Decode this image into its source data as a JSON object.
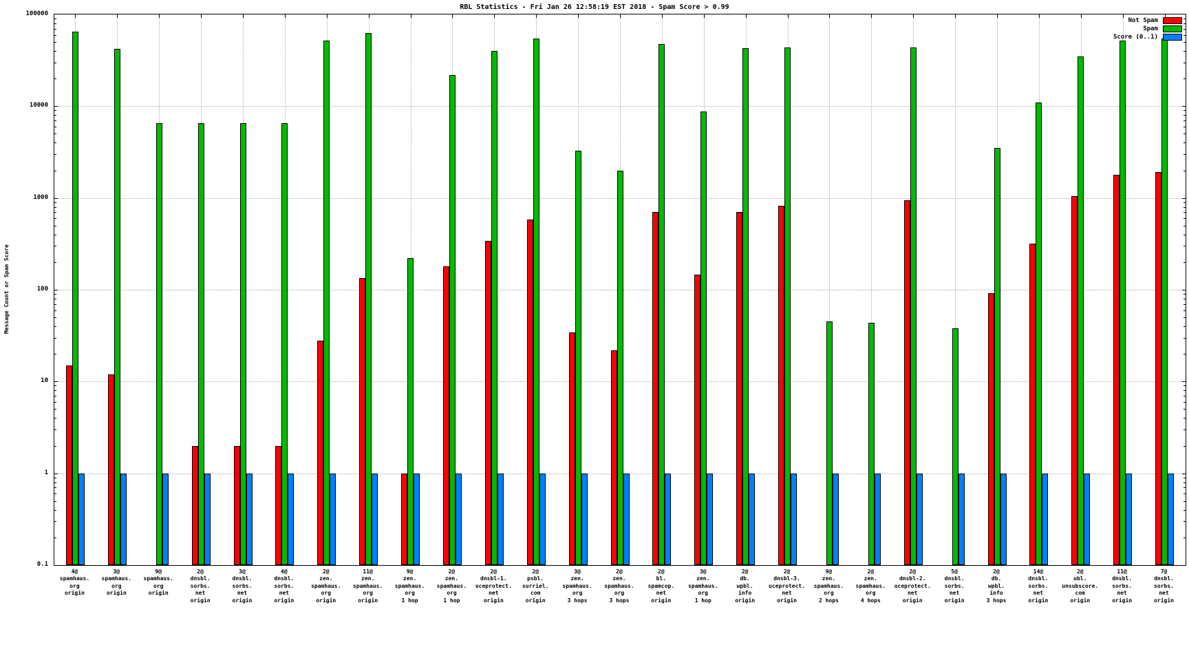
{
  "page": {
    "title": "RBL Statistics - Fri Jan 26 12:58:19 EST 2018 - Spam Score > 0.99"
  },
  "chart_data": {
    "type": "bar",
    "title": "RBL Statistics - Fri Jan 26 12:58:19 EST 2018 - Spam Score > 0.99",
    "xlabel": "",
    "ylabel": "Message Count or Spam Score",
    "yscale": "log",
    "ylim": [
      0.1,
      100000
    ],
    "yticks": [
      0.1,
      1,
      10,
      100,
      1000,
      10000,
      100000
    ],
    "ytick_labels": [
      "0.1",
      "1",
      "10",
      "100",
      "1000",
      "10000",
      "100000"
    ],
    "grid": true,
    "legend_position": "top-right",
    "categories": [
      [
        "4@",
        "spamhaus.",
        "org",
        "origin"
      ],
      [
        "3@",
        "spamhaus.",
        "org",
        "origin"
      ],
      [
        "9@",
        "spamhaus.",
        "org",
        "origin"
      ],
      [
        "2@",
        "dnsbl.",
        "sorbs.",
        "net",
        "origin"
      ],
      [
        "3@",
        "dnsbl.",
        "sorbs.",
        "net",
        "origin"
      ],
      [
        "4@",
        "dnsbl.",
        "sorbs.",
        "net",
        "origin"
      ],
      [
        "2@",
        "zen.",
        "spamhaus.",
        "org",
        "origin"
      ],
      [
        "11@",
        "zen.",
        "spamhaus.",
        "org",
        "origin"
      ],
      [
        "9@",
        "zen.",
        "spamhaus.",
        "org",
        "1 hop"
      ],
      [
        "2@",
        "zen.",
        "spamhaus.",
        "org",
        "1 hop"
      ],
      [
        "2@",
        "dnsbl-1.",
        "uceprotect.",
        "net",
        "origin"
      ],
      [
        "2@",
        "psbl.",
        "surriel.",
        "com",
        "origin"
      ],
      [
        "3@",
        "zen.",
        "spamhaus.",
        "org",
        "3 hops"
      ],
      [
        "2@",
        "zen.",
        "spamhaus.",
        "org",
        "3 hops"
      ],
      [
        "2@",
        "bl.",
        "spamcop.",
        "net",
        "origin"
      ],
      [
        "3@",
        "zen.",
        "spamhaus.",
        "org",
        "1 hop"
      ],
      [
        "2@",
        "db.",
        "wpbl.",
        "info",
        "origin"
      ],
      [
        "2@",
        "dnsbl-3.",
        "uceprotect.",
        "net",
        "origin"
      ],
      [
        "9@",
        "zen.",
        "spamhaus.",
        "org",
        "2 hops"
      ],
      [
        "2@",
        "zen.",
        "spamhaus.",
        "org",
        "4 hops"
      ],
      [
        "2@",
        "dnsbl-2.",
        "uceprotect.",
        "net",
        "origin"
      ],
      [
        "5@",
        "dnsbl.",
        "sorbs.",
        "net",
        "origin"
      ],
      [
        "2@",
        "db.",
        "wpbl.",
        "info",
        "3 hops"
      ],
      [
        "14@",
        "dnsbl.",
        "sorbs.",
        "net",
        "origin"
      ],
      [
        "2@",
        "ubl.",
        "unsubscore.",
        "com",
        "origin"
      ],
      [
        "11@",
        "dnsbl.",
        "sorbs.",
        "net",
        "origin"
      ],
      [
        "7@",
        "dnsbl.",
        "sorbs.",
        "net",
        "origin"
      ]
    ],
    "series": [
      {
        "name": "Not Spam",
        "color": "#ff0000",
        "values": [
          15,
          12,
          null,
          2,
          2,
          2,
          28,
          135,
          1,
          180,
          340,
          580,
          34,
          22,
          700,
          145,
          700,
          820,
          null,
          null,
          950,
          null,
          92,
          320,
          1050,
          1800,
          1900
        ]
      },
      {
        "name": "Spam",
        "color": "#00bb00",
        "values": [
          65000,
          42000,
          6500,
          6500,
          6500,
          6500,
          52000,
          63000,
          220,
          22000,
          40000,
          55000,
          3300,
          2000,
          48000,
          8800,
          43000,
          44000,
          45,
          44,
          44000,
          38,
          3500,
          11000,
          35000,
          52000,
          55000
        ]
      },
      {
        "name": "Score (0..1)",
        "color": "#0080ff",
        "values": [
          1,
          1,
          1,
          1,
          1,
          1,
          1,
          1,
          1,
          1,
          1,
          1,
          1,
          1,
          1,
          1,
          1,
          1,
          1,
          1,
          1,
          1,
          1,
          1,
          1,
          1,
          1
        ]
      }
    ]
  }
}
